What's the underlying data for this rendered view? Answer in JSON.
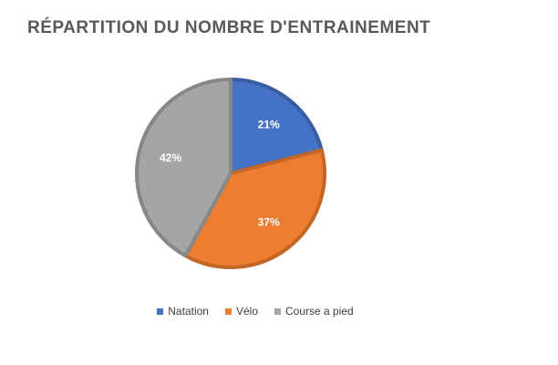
{
  "chart_data": {
    "type": "pie",
    "title": "RÉPARTITION DU NOMBRE D'ENTRAINEMENT",
    "categories": [
      "Natation",
      "Vélo",
      "Course a pied"
    ],
    "values": [
      21,
      37,
      42
    ],
    "data_labels": [
      "21%",
      "37%",
      "42%"
    ],
    "colors": [
      "#4472C4",
      "#ED7D31",
      "#A5A5A5"
    ],
    "legend_position": "bottom"
  }
}
